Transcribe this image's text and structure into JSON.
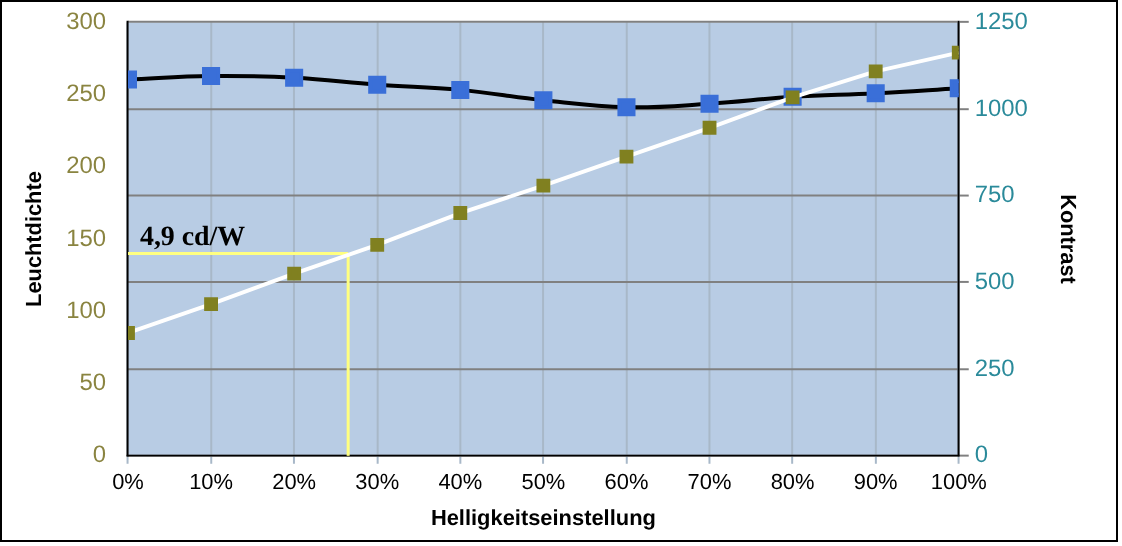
{
  "chart_data": {
    "type": "line",
    "xlabel": "Helligkeitseinstellung",
    "ylabel": "Leuchtdichte",
    "y2label": "Kontrast",
    "x": [
      0,
      10,
      20,
      30,
      40,
      50,
      60,
      70,
      80,
      90,
      100
    ],
    "xlim": [
      0,
      100
    ],
    "xticks": [
      {
        "value": 0,
        "label": "0%"
      },
      {
        "value": 10,
        "label": "10%"
      },
      {
        "value": 20,
        "label": "20%"
      },
      {
        "value": 30,
        "label": "30%"
      },
      {
        "value": 40,
        "label": "40%"
      },
      {
        "value": 50,
        "label": "50%"
      },
      {
        "value": 60,
        "label": "60%"
      },
      {
        "value": 70,
        "label": "70%"
      },
      {
        "value": 80,
        "label": "80%"
      },
      {
        "value": 90,
        "label": "90%"
      },
      {
        "value": 100,
        "label": "100%"
      }
    ],
    "ylim": [
      0,
      300
    ],
    "yticks": [
      0,
      50,
      100,
      150,
      200,
      250,
      300
    ],
    "y2lim": [
      0,
      1250
    ],
    "y2ticks": [
      0,
      250,
      500,
      750,
      1000,
      1250
    ],
    "series": [
      {
        "color": "#808020",
        "values": [
          85,
          105,
          126,
          146,
          168,
          187,
          207,
          227,
          248,
          266,
          279
        ]
      },
      {
        "color": "#3a6fd8",
        "axis": "y2",
        "values": [
          1085,
          1095,
          1090,
          1070,
          1055,
          1025,
          1005,
          1015,
          1035,
          1045,
          1060
        ]
      }
    ],
    "ref_lines": [
      {
        "axis": "y",
        "value": 140,
        "label": "4,9 cd/W",
        "color": "#ffff80"
      },
      {
        "axis": "x",
        "value": 26.5,
        "color": "#ffff80"
      }
    ],
    "grid": true,
    "legend": false,
    "marker": "square",
    "line_style": "solid"
  }
}
